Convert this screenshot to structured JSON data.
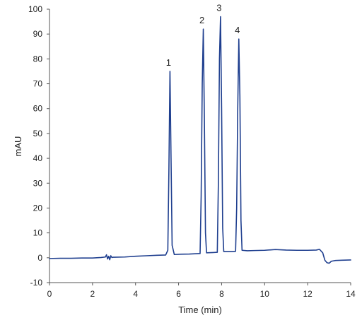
{
  "chart_data": {
    "type": "line",
    "title": "",
    "xlabel": "Time (min)",
    "ylabel": "mAU",
    "xlim": [
      0,
      14
    ],
    "ylim": [
      -10,
      100
    ],
    "xticks": [
      0,
      2,
      4,
      6,
      8,
      10,
      12,
      14
    ],
    "yticks": [
      -10,
      0,
      10,
      20,
      30,
      40,
      50,
      60,
      70,
      80,
      90,
      100
    ],
    "grid": false,
    "line_color": "#1f3f8f",
    "peaks": [
      {
        "label": "1",
        "x": 5.6,
        "y": 75
      },
      {
        "label": "2",
        "x": 7.15,
        "y": 92
      },
      {
        "label": "3",
        "x": 7.95,
        "y": 97
      },
      {
        "label": "4",
        "x": 8.8,
        "y": 88
      }
    ],
    "series": [
      {
        "x": [
          0,
          0.5,
          1.0,
          1.5,
          2.0,
          2.4,
          2.6,
          2.65,
          2.7,
          2.75,
          2.8,
          2.85,
          2.9,
          2.95,
          3.0,
          3.5,
          4.0,
          4.5,
          5.0,
          5.4,
          5.5,
          5.55,
          5.6,
          5.65,
          5.7,
          5.8,
          6.0,
          6.5,
          7.0,
          7.05,
          7.1,
          7.15,
          7.2,
          7.25,
          7.3,
          7.6,
          7.8,
          7.85,
          7.9,
          7.95,
          8.0,
          8.05,
          8.1,
          8.5,
          8.65,
          8.7,
          8.75,
          8.8,
          8.85,
          8.9,
          8.95,
          9.2,
          9.5,
          10.0,
          10.5,
          11.0,
          11.5,
          12.0,
          12.4,
          12.55,
          12.7,
          12.8,
          12.9,
          13.0,
          13.1,
          13.3,
          13.6,
          14.0
        ],
        "y": [
          -0.3,
          -0.2,
          -0.2,
          -0.1,
          -0.1,
          0.1,
          0.3,
          1.2,
          -0.5,
          0.6,
          -0.8,
          0.8,
          0.1,
          0.2,
          0.2,
          0.3,
          0.6,
          0.8,
          1.0,
          1.1,
          3.0,
          35,
          75,
          40,
          5,
          1.3,
          1.4,
          1.5,
          1.7,
          25,
          70,
          92,
          55,
          10,
          2.0,
          2.1,
          2.2,
          30,
          80,
          97,
          60,
          12,
          2.5,
          2.5,
          2.6,
          20,
          60,
          88,
          65,
          15,
          3.0,
          2.8,
          2.9,
          3.0,
          3.3,
          3.1,
          3.0,
          3.0,
          3.1,
          3.4,
          2.0,
          -1.0,
          -2.0,
          -2.2,
          -1.4,
          -1.1,
          -1.0,
          -0.9
        ]
      }
    ]
  }
}
